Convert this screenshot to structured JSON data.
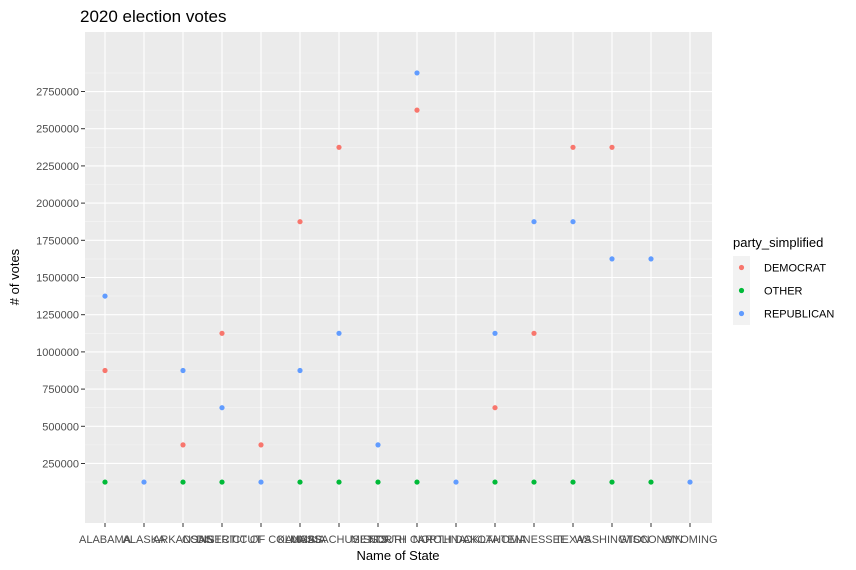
{
  "chart_data": {
    "type": "scatter",
    "title": "2020 election votes",
    "xlabel": "Name of State",
    "ylabel": "# of votes",
    "ylim": [
      -150000,
      3150000
    ],
    "yticks": [
      250000,
      500000,
      750000,
      1000000,
      1250000,
      1500000,
      1750000,
      2000000,
      2250000,
      2500000,
      2750000
    ],
    "ytick_labels": [
      "250000",
      "500000",
      "750000",
      "1000000",
      "1250000",
      "1500000",
      "1750000",
      "2000000",
      "2250000",
      "2500000",
      "2750000"
    ],
    "categories": [
      "ALABAMA",
      "ALASKA",
      "ARKANSAS",
      "CONNECTICUT",
      "DISTRICT OF COLUMBIA",
      "KANSAS",
      "MASSACHUSETTS",
      "MISSOURI",
      "NORTH CAROLINA",
      "NORTH DAKOTA",
      "OKLAHOMA",
      "TENNESSEE",
      "TEXAS",
      "WASHINGTON",
      "WISCONSIN",
      "WYOMING"
    ],
    "legend": {
      "title": "party_simplified",
      "placement": "right"
    },
    "grid": true,
    "series": [
      {
        "name": "DEMOCRAT",
        "color": "#F8766D",
        "points": [
          {
            "x": "ALABAMA",
            "y": 875000
          },
          {
            "x": "ARKANSAS",
            "y": 375000
          },
          {
            "x": "CONNECTICUT",
            "y": 1125000
          },
          {
            "x": "DISTRICT OF COLUMBIA",
            "y": 375000
          },
          {
            "x": "KANSAS",
            "y": 1875000
          },
          {
            "x": "MASSACHUSETTS",
            "y": 2375000
          },
          {
            "x": "NORTH CAROLINA",
            "y": 2625000
          },
          {
            "x": "OKLAHOMA",
            "y": 625000
          },
          {
            "x": "TENNESSEE",
            "y": 1125000
          },
          {
            "x": "TEXAS",
            "y": 2375000
          },
          {
            "x": "WASHINGTON",
            "y": 2375000
          }
        ]
      },
      {
        "name": "OTHER",
        "color": "#00BA38",
        "points": [
          {
            "x": "ALABAMA",
            "y": 125000
          },
          {
            "x": "ARKANSAS",
            "y": 125000
          },
          {
            "x": "CONNECTICUT",
            "y": 125000
          },
          {
            "x": "KANSAS",
            "y": 125000
          },
          {
            "x": "MASSACHUSETTS",
            "y": 125000
          },
          {
            "x": "MISSOURI",
            "y": 125000
          },
          {
            "x": "NORTH CAROLINA",
            "y": 125000
          },
          {
            "x": "OKLAHOMA",
            "y": 125000
          },
          {
            "x": "TENNESSEE",
            "y": 125000
          },
          {
            "x": "TEXAS",
            "y": 125000
          },
          {
            "x": "WASHINGTON",
            "y": 125000
          },
          {
            "x": "WISCONSIN",
            "y": 125000
          }
        ]
      },
      {
        "name": "REPUBLICAN",
        "color": "#619CFF",
        "points": [
          {
            "x": "ALABAMA",
            "y": 1375000
          },
          {
            "x": "ALASKA",
            "y": 125000
          },
          {
            "x": "ARKANSAS",
            "y": 875000
          },
          {
            "x": "CONNECTICUT",
            "y": 625000
          },
          {
            "x": "DISTRICT OF COLUMBIA",
            "y": 125000
          },
          {
            "x": "KANSAS",
            "y": 875000
          },
          {
            "x": "MASSACHUSETTS",
            "y": 1125000
          },
          {
            "x": "MISSOURI",
            "y": 375000
          },
          {
            "x": "NORTH CAROLINA",
            "y": 2875000
          },
          {
            "x": "NORTH DAKOTA",
            "y": 125000
          },
          {
            "x": "OKLAHOMA",
            "y": 1125000
          },
          {
            "x": "TENNESSEE",
            "y": 1875000
          },
          {
            "x": "TEXAS",
            "y": 1875000
          },
          {
            "x": "WASHINGTON",
            "y": 1625000
          },
          {
            "x": "WISCONSIN",
            "y": 1625000
          },
          {
            "x": "WYOMING",
            "y": 125000
          }
        ]
      }
    ]
  },
  "colors": {
    "panel_background": "#EBEBEB",
    "grid_major": "#FFFFFF",
    "grid_minor": "#F5F5F5",
    "tick_text": "#4D4D4D",
    "legend_key_background": "#F2F2F2"
  }
}
